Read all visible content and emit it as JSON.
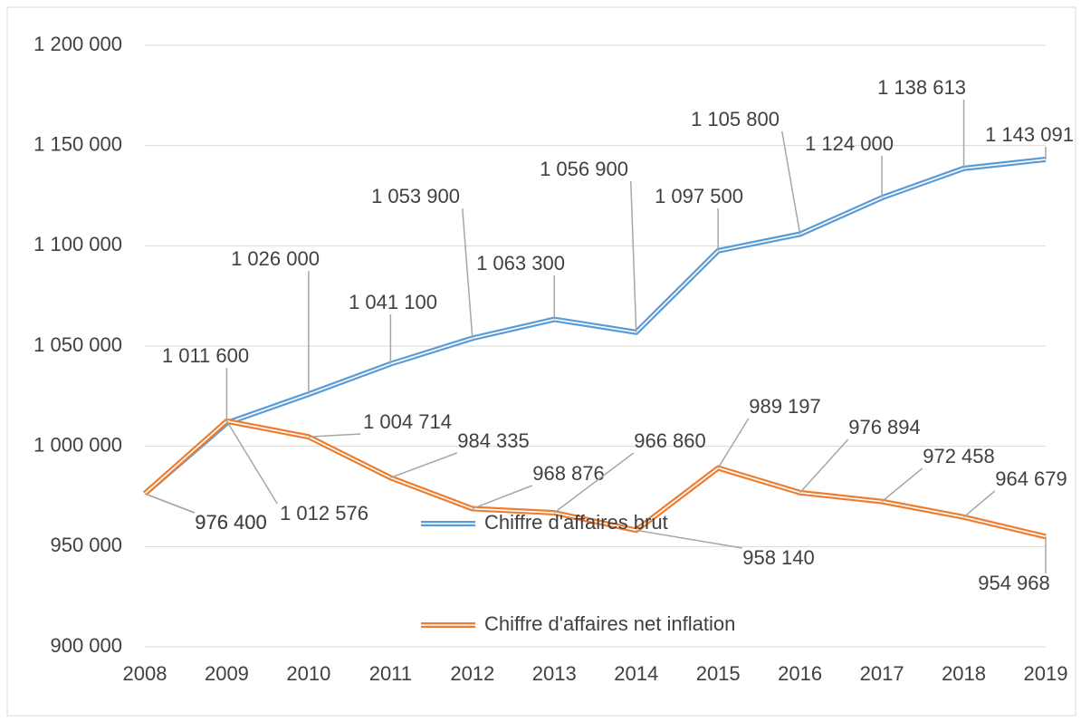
{
  "chart_data": {
    "type": "line",
    "categories": [
      "2008",
      "2009",
      "2010",
      "2011",
      "2012",
      "2013",
      "2014",
      "2015",
      "2016",
      "2017",
      "2018",
      "2019"
    ],
    "series": [
      {
        "name": "Chiffre d'affaires brut",
        "color": "#5b9bd5",
        "values": [
          976400,
          1011600,
          1026000,
          1041100,
          1053900,
          1063300,
          1056900,
          1097500,
          1105800,
          1124000,
          1138613,
          1143091
        ],
        "value_labels": [
          "976 400",
          "1 011 600",
          "1 026 000",
          "1 041 100",
          "1 053 900",
          "1 063 300",
          "1 056 900",
          "1 097 500",
          "1 105 800",
          "1 124 000",
          "1 138 613",
          "1 143 091"
        ]
      },
      {
        "name": "Chiffre d'affaires net inflation",
        "color": "#ed7d31",
        "values": [
          976400,
          1012576,
          1004714,
          984335,
          968876,
          966860,
          958140,
          989197,
          976894,
          972458,
          964679,
          954968
        ],
        "value_labels": [
          "976 400",
          "1 012 576",
          "1 004 714",
          "984 335",
          "968 876",
          "966 860",
          "958 140",
          "989 197",
          "976 894",
          "972 458",
          "964 679",
          "954 968"
        ]
      }
    ],
    "ylim": [
      900000,
      1200000
    ],
    "yticks": [
      {
        "value": 900000,
        "label": "900 000"
      },
      {
        "value": 950000,
        "label": "950 000"
      },
      {
        "value": 1000000,
        "label": "1 000 000"
      },
      {
        "value": 1050000,
        "label": "1 050 000"
      },
      {
        "value": 1100000,
        "label": "1 100 000"
      },
      {
        "value": 1150000,
        "label": "1 150 000"
      },
      {
        "value": 1200000,
        "label": "1 200 000"
      }
    ],
    "grid": true
  }
}
